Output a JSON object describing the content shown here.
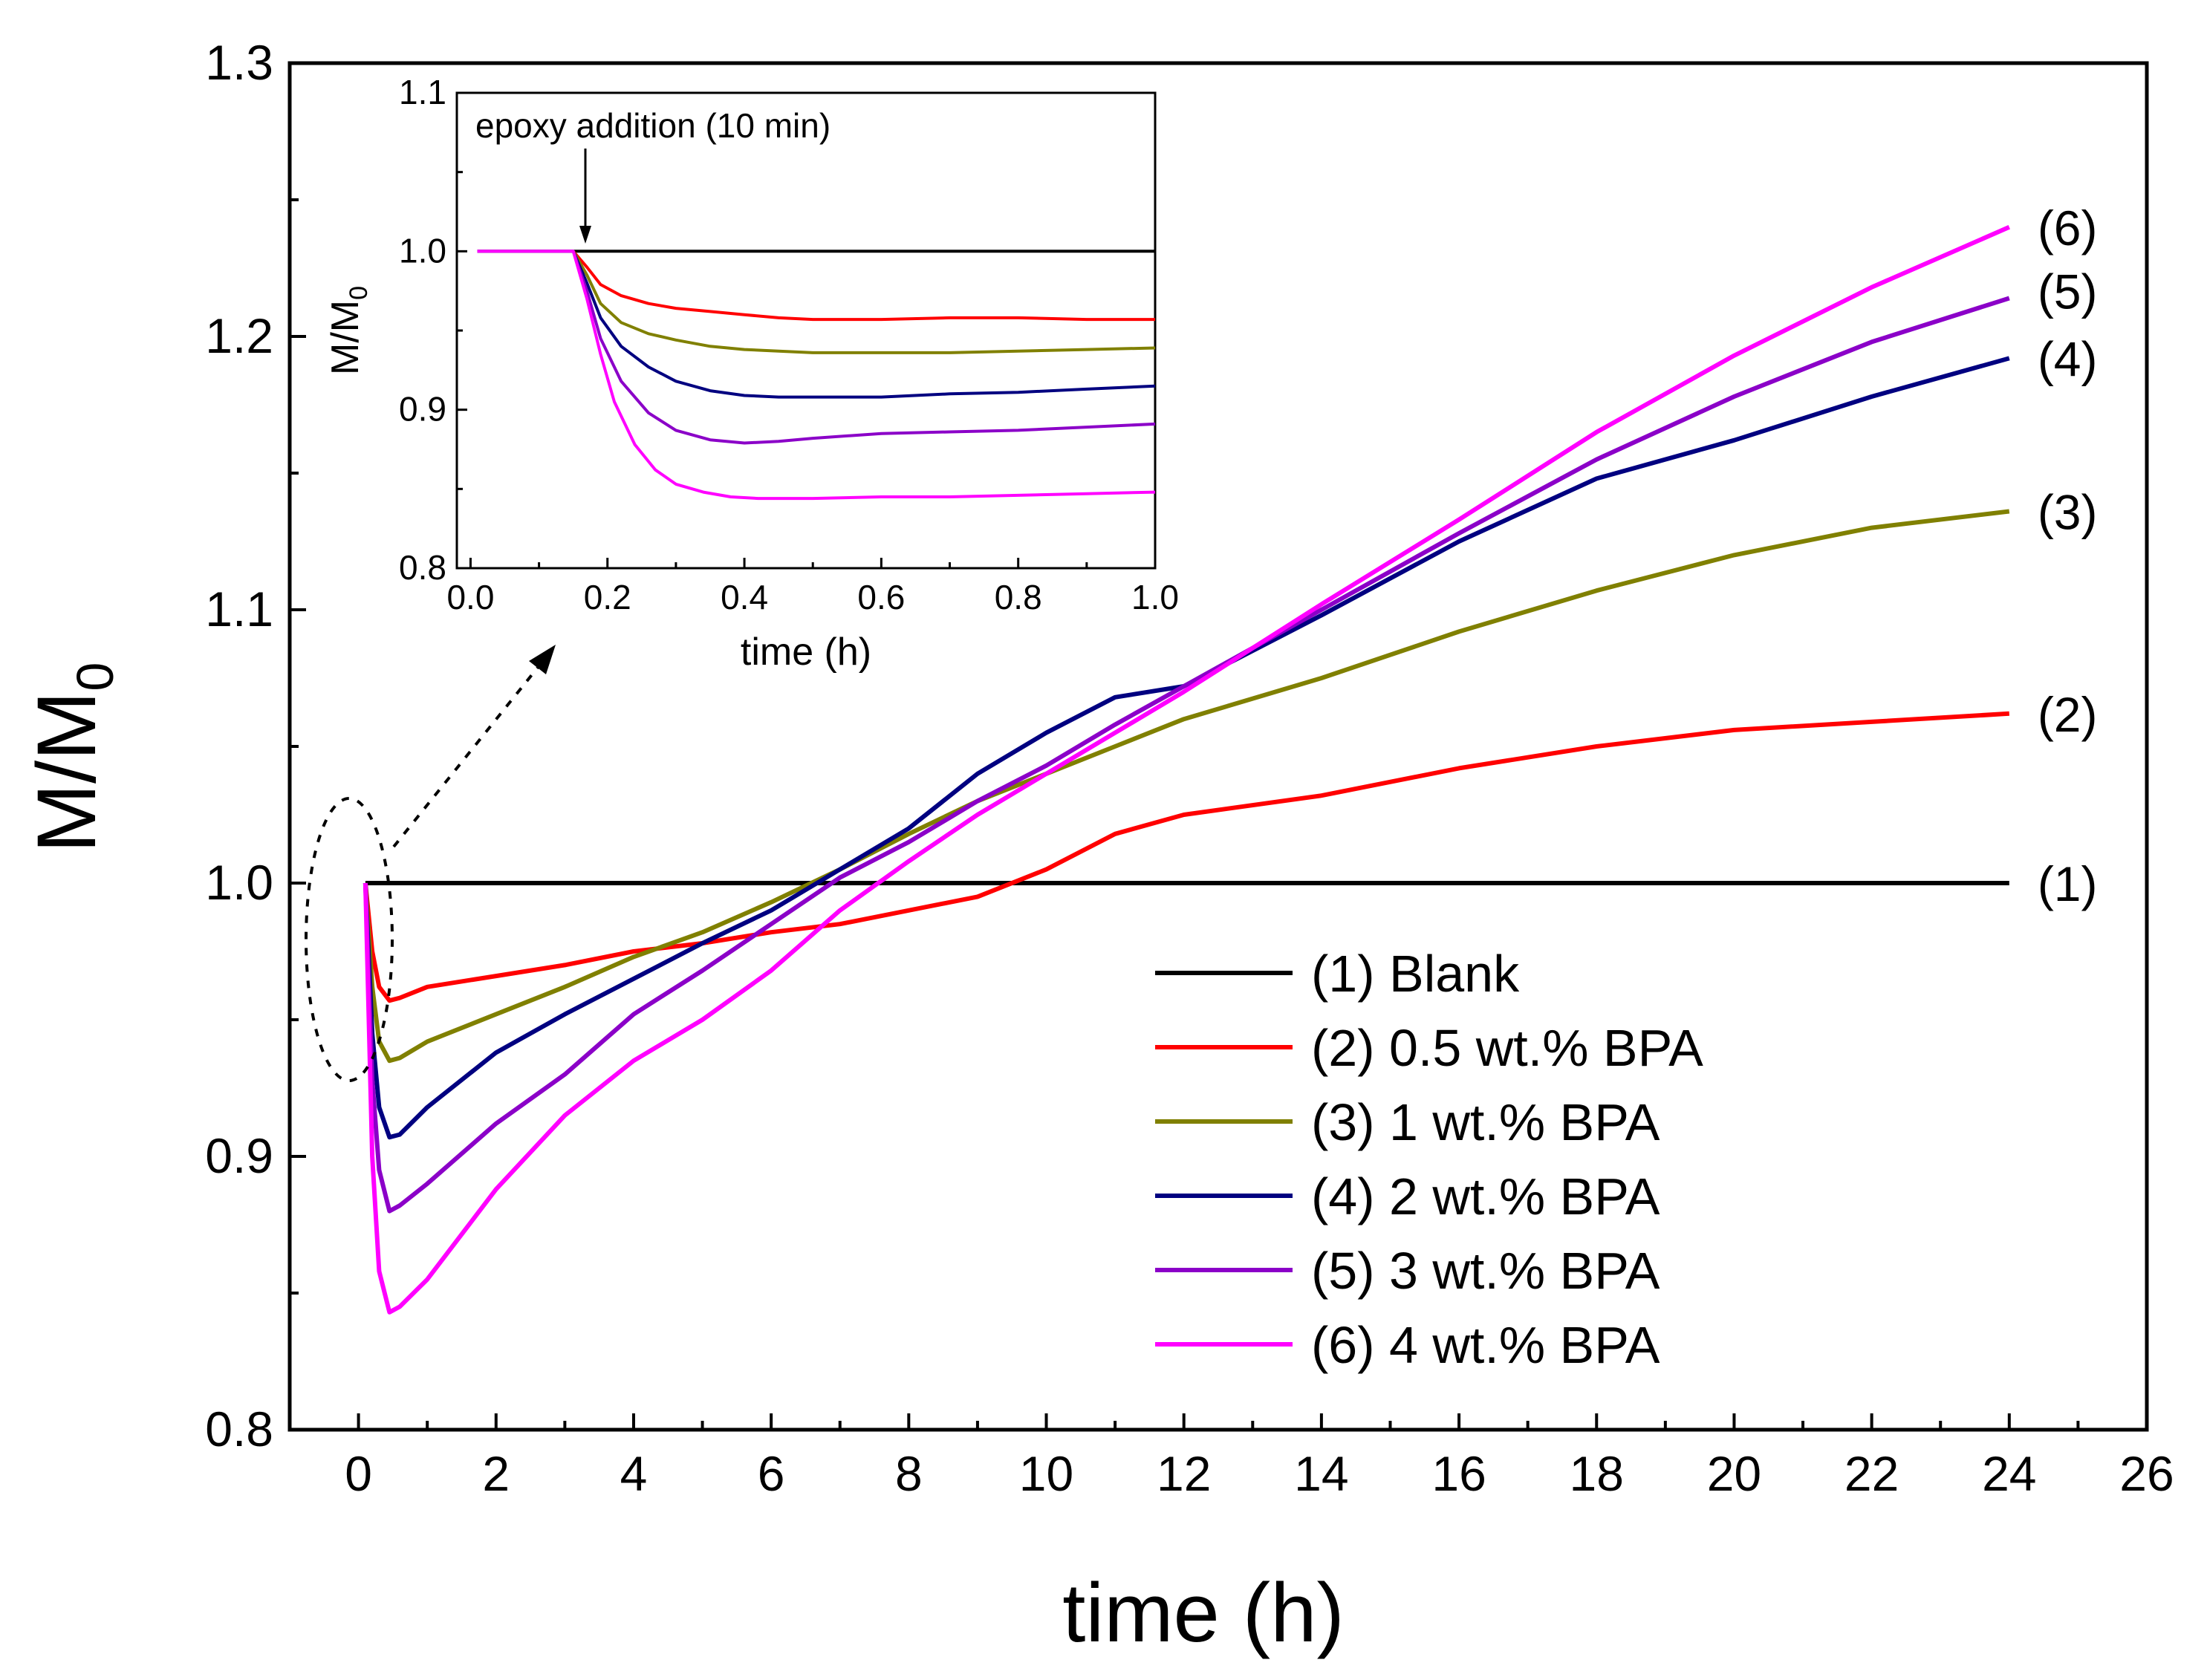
{
  "chart_data": [
    {
      "id": "main",
      "type": "line",
      "title": "",
      "xlabel": "time (h)",
      "ylabel_base": "M/M",
      "ylabel_sub": "0",
      "xlim": [
        -1,
        26
      ],
      "ylim": [
        0.8,
        1.3
      ],
      "xticks": [
        "0",
        "2",
        "4",
        "6",
        "8",
        "10",
        "12",
        "14",
        "16",
        "18",
        "20",
        "22",
        "24",
        "26"
      ],
      "yticks": [
        "0.8",
        "0.9",
        "1.0",
        "1.1",
        "1.2",
        "1.3"
      ],
      "legend": {
        "location": "lower-right"
      },
      "series": [
        {
          "id": "s1",
          "name": "(1) Blank",
          "tag": "(1)",
          "color": "#000000",
          "x": [
            0.1,
            24
          ],
          "y": [
            1.0,
            1.0
          ]
        },
        {
          "id": "s2",
          "name": "(2) 0.5 wt.% BPA",
          "tag": "(2)",
          "color": "#ff0000",
          "x": [
            0.1,
            0.2,
            0.3,
            0.45,
            0.6,
            1.0,
            2,
            3,
            4,
            5,
            6,
            7,
            8,
            9,
            10,
            11,
            12,
            14,
            16,
            18,
            20,
            22,
            24
          ],
          "y": [
            1.0,
            0.975,
            0.962,
            0.957,
            0.958,
            0.962,
            0.966,
            0.97,
            0.975,
            0.978,
            0.982,
            0.985,
            0.99,
            0.995,
            1.005,
            1.018,
            1.025,
            1.032,
            1.042,
            1.05,
            1.056,
            1.059,
            1.062
          ]
        },
        {
          "id": "s3",
          "name": "(3) 1 wt.% BPA",
          "tag": "(3)",
          "color": "#808000",
          "x": [
            0.1,
            0.2,
            0.3,
            0.45,
            0.6,
            1.0,
            2,
            3,
            4,
            5,
            6,
            7,
            8,
            9,
            10,
            11,
            12,
            14,
            16,
            18,
            20,
            22,
            24
          ],
          "y": [
            1.0,
            0.962,
            0.942,
            0.935,
            0.936,
            0.942,
            0.952,
            0.962,
            0.973,
            0.982,
            0.993,
            1.005,
            1.018,
            1.03,
            1.04,
            1.05,
            1.06,
            1.075,
            1.092,
            1.107,
            1.12,
            1.13,
            1.136
          ]
        },
        {
          "id": "s4",
          "name": "(4) 2 wt.% BPA",
          "tag": "(4)",
          "color": "#000080",
          "x": [
            0.1,
            0.2,
            0.3,
            0.45,
            0.6,
            1.0,
            2,
            3,
            4,
            5,
            6,
            7,
            8,
            9,
            10,
            11,
            12,
            14,
            16,
            18,
            20,
            22,
            24
          ],
          "y": [
            1.0,
            0.945,
            0.918,
            0.907,
            0.908,
            0.918,
            0.938,
            0.952,
            0.965,
            0.978,
            0.99,
            1.005,
            1.02,
            1.04,
            1.055,
            1.068,
            1.072,
            1.098,
            1.125,
            1.148,
            1.162,
            1.178,
            1.192
          ]
        },
        {
          "id": "s5",
          "name": "(5) 3 wt.% BPA",
          "tag": "(5)",
          "color": "#8b00c8",
          "x": [
            0.1,
            0.2,
            0.3,
            0.45,
            0.6,
            1.0,
            2,
            3,
            4,
            5,
            6,
            7,
            8,
            9,
            10,
            11,
            12,
            14,
            16,
            18,
            20,
            22,
            24
          ],
          "y": [
            1.0,
            0.928,
            0.895,
            0.88,
            0.882,
            0.89,
            0.912,
            0.93,
            0.952,
            0.968,
            0.985,
            1.002,
            1.015,
            1.03,
            1.043,
            1.058,
            1.072,
            1.1,
            1.128,
            1.155,
            1.178,
            1.198,
            1.214
          ]
        },
        {
          "id": "s6",
          "name": "(6) 4 wt.% BPA",
          "tag": "(6)",
          "color": "#ff00ff",
          "x": [
            0.1,
            0.2,
            0.3,
            0.45,
            0.6,
            1.0,
            2,
            3,
            4,
            5,
            6,
            7,
            8,
            9,
            10,
            11,
            12,
            14,
            16,
            18,
            20,
            22,
            24
          ],
          "y": [
            1.0,
            0.9,
            0.858,
            0.843,
            0.845,
            0.855,
            0.888,
            0.915,
            0.935,
            0.95,
            0.968,
            0.99,
            1.008,
            1.025,
            1.04,
            1.055,
            1.07,
            1.102,
            1.133,
            1.165,
            1.193,
            1.218,
            1.24
          ]
        }
      ]
    },
    {
      "id": "inset",
      "type": "line",
      "title": "",
      "xlabel": "time (h)",
      "ylabel_base": "M/M",
      "ylabel_sub": "0",
      "xlim": [
        -0.02,
        1.0
      ],
      "ylim": [
        0.8,
        1.1
      ],
      "xticks": [
        "0.0",
        "0.2",
        "0.4",
        "0.6",
        "0.8",
        "1.0"
      ],
      "yticks": [
        "0.8",
        "0.9",
        "1.0",
        "1.1"
      ],
      "annotation": "epoxy addition (10 min)",
      "series": [
        {
          "id": "i1",
          "name": "(1) Blank",
          "color": "#000000",
          "x": [
            0.01,
            1.0
          ],
          "y": [
            1.0,
            1.0
          ]
        },
        {
          "id": "i2",
          "name": "(2) 0.5 wt.% BPA",
          "color": "#ff0000",
          "x": [
            0.01,
            0.15,
            0.17,
            0.19,
            0.22,
            0.26,
            0.3,
            0.35,
            0.4,
            0.45,
            0.5,
            0.6,
            0.7,
            0.8,
            0.9,
            1.0
          ],
          "y": [
            1.0,
            1.0,
            0.99,
            0.979,
            0.972,
            0.967,
            0.964,
            0.962,
            0.96,
            0.958,
            0.957,
            0.957,
            0.958,
            0.958,
            0.957,
            0.957
          ]
        },
        {
          "id": "i3",
          "name": "(3) 1 wt.% BPA",
          "color": "#808000",
          "x": [
            0.01,
            0.15,
            0.17,
            0.19,
            0.22,
            0.26,
            0.3,
            0.35,
            0.4,
            0.45,
            0.5,
            0.6,
            0.7,
            0.8,
            0.9,
            1.0
          ],
          "y": [
            1.0,
            1.0,
            0.985,
            0.967,
            0.955,
            0.948,
            0.944,
            0.94,
            0.938,
            0.937,
            0.936,
            0.936,
            0.936,
            0.937,
            0.938,
            0.939
          ]
        },
        {
          "id": "i4",
          "name": "(4) 2 wt.% BPA",
          "color": "#000080",
          "x": [
            0.01,
            0.15,
            0.17,
            0.19,
            0.22,
            0.26,
            0.3,
            0.35,
            0.4,
            0.45,
            0.5,
            0.6,
            0.7,
            0.8,
            0.9,
            1.0
          ],
          "y": [
            1.0,
            1.0,
            0.98,
            0.958,
            0.94,
            0.927,
            0.918,
            0.912,
            0.909,
            0.908,
            0.908,
            0.908,
            0.91,
            0.911,
            0.913,
            0.915
          ]
        },
        {
          "id": "i5",
          "name": "(5) 3 wt.% BPA",
          "color": "#8b00c8",
          "x": [
            0.01,
            0.15,
            0.17,
            0.19,
            0.22,
            0.26,
            0.3,
            0.35,
            0.4,
            0.45,
            0.5,
            0.6,
            0.7,
            0.8,
            0.9,
            1.0
          ],
          "y": [
            1.0,
            1.0,
            0.975,
            0.945,
            0.918,
            0.898,
            0.887,
            0.881,
            0.879,
            0.88,
            0.882,
            0.885,
            0.886,
            0.887,
            0.889,
            0.891
          ]
        },
        {
          "id": "i6",
          "name": "(6) 4 wt.% BPA",
          "color": "#ff00ff",
          "x": [
            0.01,
            0.15,
            0.17,
            0.19,
            0.21,
            0.24,
            0.27,
            0.3,
            0.34,
            0.38,
            0.42,
            0.5,
            0.6,
            0.7,
            0.8,
            0.9,
            1.0
          ],
          "y": [
            1.0,
            1.0,
            0.97,
            0.935,
            0.905,
            0.878,
            0.862,
            0.853,
            0.848,
            0.845,
            0.844,
            0.844,
            0.845,
            0.845,
            0.846,
            0.847,
            0.848
          ]
        }
      ]
    }
  ]
}
